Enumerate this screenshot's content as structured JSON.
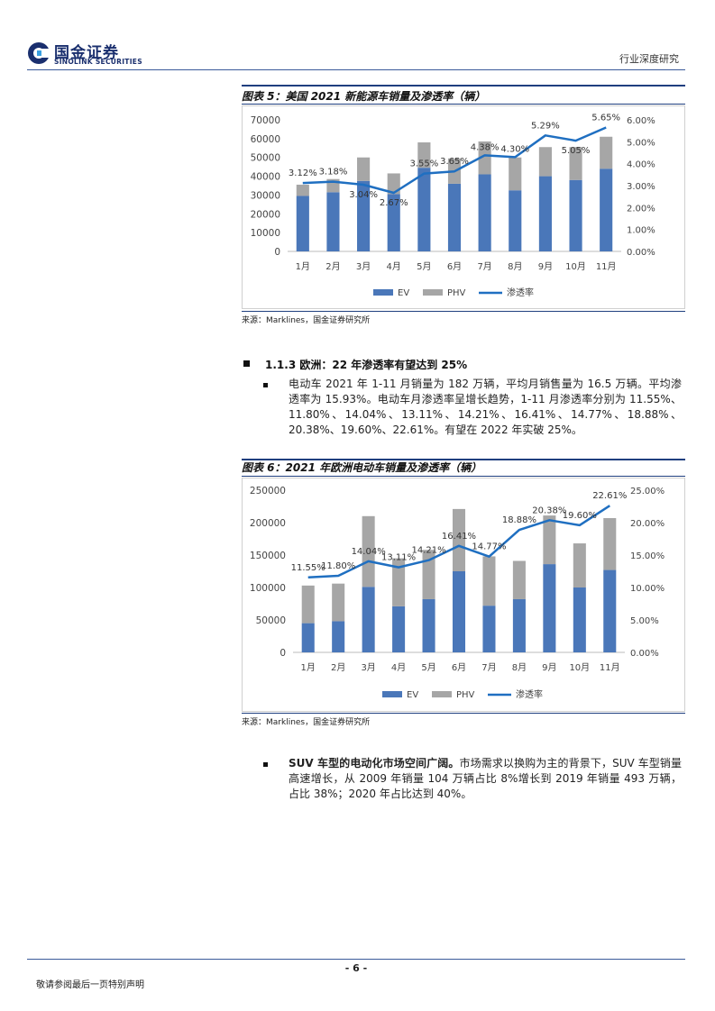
{
  "header": {
    "logo_cn": "国金证券",
    "logo_en": "SINOLINK SECURITIES",
    "report_type": "行业深度研究"
  },
  "figure5": {
    "title": "图表 5：美国 2021 新能源车销量及渗透率（辆）",
    "source": "来源：Marklines，国金证券研究所"
  },
  "section": {
    "title": "1.1.3 欧洲：22 年渗透率有望达到 25%",
    "para": "电动车 2021 年 1-11 月销量为 182 万辆，平均月销售量为 16.5 万辆。平均渗透率为 15.93%。电动车月渗透率呈增长趋势，1-11 月渗透率分别为 11.55%、11.80%、14.04%、13.11%、14.21%、16.41%、14.77%、18.88%、20.38%、19.60%、22.61%。有望在 2022 年实破 25%。"
  },
  "figure6": {
    "title": "图表 6：2021 年欧洲电动车销量及渗透率（辆）",
    "source": "来源：Marklines，国金证券研究所"
  },
  "suv": {
    "bold": "SUV 车型的电动化市场空间广阔。",
    "text": "市场需求以换购为主的背景下，SUV 车型销量高速增长，从 2009 年销量 104 万辆占比 8%增长到 2019 年销量 493 万辆，占比 38%；2020 年占比达到 40%。"
  },
  "footer": {
    "page": "- 6 -",
    "note": "敬请参阅最后一页特别声明"
  },
  "colors": {
    "ev": "#4a77b9",
    "phv": "#a6a6a6",
    "line": "#1f6fc1",
    "brand": "#1a2f6e"
  },
  "chart_data": [
    {
      "type": "bar",
      "categories": [
        "1月",
        "2月",
        "3月",
        "4月",
        "5月",
        "6月",
        "7月",
        "8月",
        "9月",
        "10月",
        "11月"
      ],
      "series": [
        {
          "name": "EV",
          "values": [
            29500,
            31500,
            37500,
            30500,
            44500,
            36000,
            41000,
            32500,
            40000,
            38000,
            44000
          ]
        },
        {
          "name": "PHV",
          "values": [
            6000,
            7000,
            12500,
            11000,
            13500,
            13500,
            17500,
            17500,
            15500,
            17500,
            17000
          ]
        },
        {
          "name": "渗透率",
          "type": "line",
          "axis": "right",
          "values": [
            3.12,
            3.18,
            3.04,
            2.67,
            3.55,
            3.65,
            4.38,
            4.3,
            5.29,
            5.05,
            5.65
          ],
          "labels": [
            "3.12%",
            "3.18%",
            "3.04%",
            "2.67%",
            "3.55%",
            "3.65%",
            "4.38%",
            "4.30%",
            "5.29%",
            "5.05%",
            "5.65%"
          ]
        }
      ],
      "stacked": true,
      "ylim": [
        0,
        70000
      ],
      "yticks": [
        "0",
        "10000",
        "20000",
        "30000",
        "40000",
        "50000",
        "60000",
        "70000"
      ],
      "y2lim": [
        0,
        6
      ],
      "y2ticks": [
        "0.00%",
        "1.00%",
        "2.00%",
        "3.00%",
        "4.00%",
        "5.00%",
        "6.00%"
      ],
      "legend": [
        "EV",
        "PHV",
        "渗透率"
      ],
      "legend_position": "bottom"
    },
    {
      "type": "bar",
      "categories": [
        "1月",
        "2月",
        "3月",
        "4月",
        "5月",
        "6月",
        "7月",
        "8月",
        "9月",
        "10月",
        "11月"
      ],
      "series": [
        {
          "name": "EV",
          "values": [
            45000,
            48000,
            101000,
            71000,
            82000,
            125000,
            72000,
            82000,
            136000,
            100000,
            127000
          ]
        },
        {
          "name": "PHV",
          "values": [
            58000,
            58000,
            109000,
            74000,
            76000,
            96000,
            76000,
            59000,
            75000,
            68000,
            80000
          ]
        },
        {
          "name": "渗透率",
          "type": "line",
          "axis": "right",
          "values": [
            11.55,
            11.8,
            14.04,
            13.11,
            14.21,
            16.41,
            14.77,
            18.88,
            20.38,
            19.6,
            22.61
          ],
          "labels": [
            "11.55%",
            "11.80%",
            "14.04%",
            "13.11%",
            "14.21%",
            "16.41%",
            "14.77%",
            "18.88%",
            "20.38%",
            "19.60%",
            "22.61%"
          ]
        }
      ],
      "stacked": true,
      "ylim": [
        0,
        250000
      ],
      "yticks": [
        "0",
        "50000",
        "100000",
        "150000",
        "200000",
        "250000"
      ],
      "y2lim": [
        0,
        25
      ],
      "y2ticks": [
        "0.00%",
        "5.00%",
        "10.00%",
        "15.00%",
        "20.00%",
        "25.00%"
      ],
      "legend": [
        "EV",
        "PHV",
        "渗透率"
      ],
      "legend_position": "bottom"
    }
  ]
}
